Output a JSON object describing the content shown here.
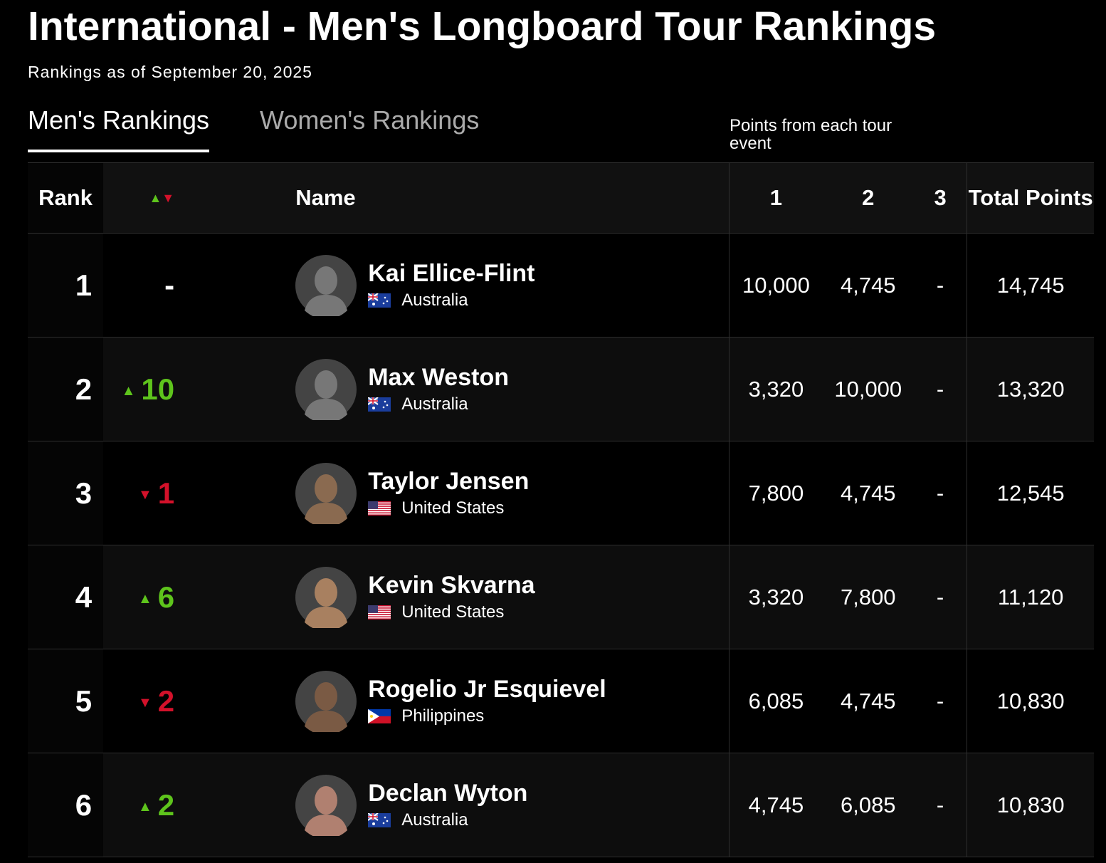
{
  "header": {
    "title": "International - Men's Longboard Tour Rankings",
    "subtitle": "Rankings as of September 20, 2025"
  },
  "tabs": [
    {
      "label": "Men's Rankings",
      "active": true
    },
    {
      "label": "Women's Rankings",
      "active": false
    }
  ],
  "table": {
    "points_note": "Points from each tour event",
    "headers": {
      "rank": "Rank",
      "name": "Name",
      "events": [
        "1",
        "2",
        "3"
      ],
      "total": "Total Points"
    },
    "rows": [
      {
        "rank": "1",
        "change": "-",
        "trend": "none",
        "name": "Kai Ellice-Flint",
        "country": "Australia",
        "events": [
          "10,000",
          "4,745",
          "-"
        ],
        "total": "14,745"
      },
      {
        "rank": "2",
        "change": "10",
        "trend": "up",
        "name": "Max Weston",
        "country": "Australia",
        "events": [
          "3,320",
          "10,000",
          "-"
        ],
        "total": "13,320"
      },
      {
        "rank": "3",
        "change": "1",
        "trend": "down",
        "name": "Taylor Jensen",
        "country": "United States",
        "events": [
          "7,800",
          "4,745",
          "-"
        ],
        "total": "12,545"
      },
      {
        "rank": "4",
        "change": "6",
        "trend": "up",
        "name": "Kevin Skvarna",
        "country": "United States",
        "events": [
          "3,320",
          "7,800",
          "-"
        ],
        "total": "11,120"
      },
      {
        "rank": "5",
        "change": "2",
        "trend": "down",
        "name": "Rogelio Jr Esquievel",
        "country": "Philippines",
        "events": [
          "6,085",
          "4,745",
          "-"
        ],
        "total": "10,830"
      },
      {
        "rank": "6",
        "change": "2",
        "trend": "up",
        "name": "Declan Wyton",
        "country": "Australia",
        "events": [
          "4,745",
          "6,085",
          "-"
        ],
        "total": "10,830"
      }
    ]
  }
}
